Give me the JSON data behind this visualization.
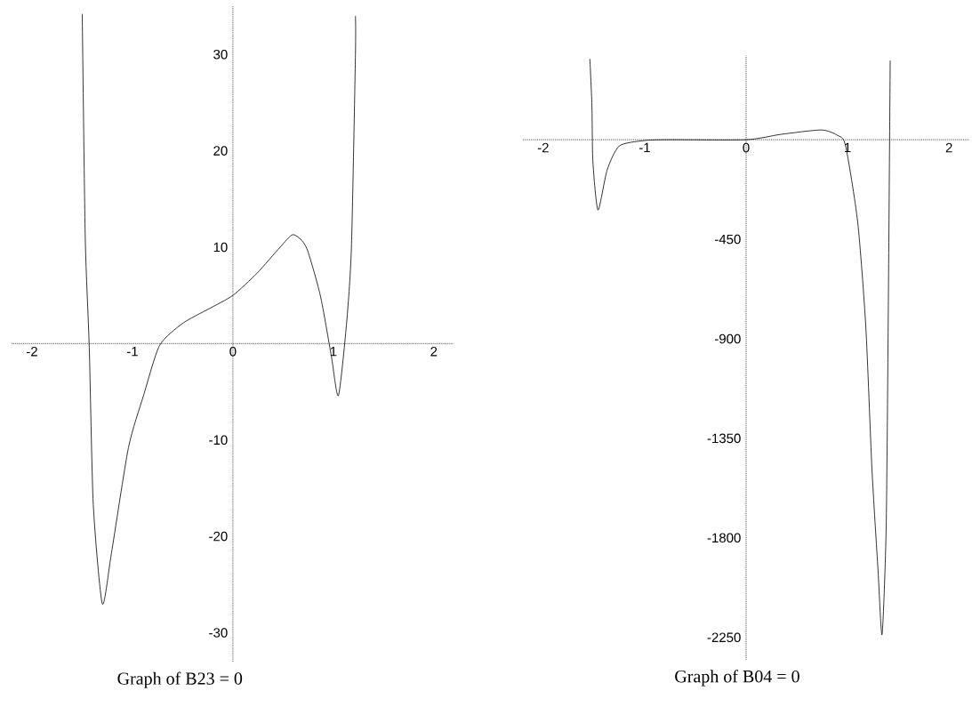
{
  "chart_data": [
    {
      "type": "line",
      "title": "Graph of  B23 = 0",
      "xlim": [
        -2.2,
        2.2
      ],
      "ylim": [
        -33,
        35
      ],
      "xticks": [
        -2,
        -1,
        0,
        1,
        2
      ],
      "yticks": [
        -30,
        -20,
        -10,
        10,
        20,
        30
      ],
      "color": "#000000",
      "x": [
        -1.5,
        -1.47,
        -1.43,
        -1.39,
        -1.3,
        -1.21,
        -1.04,
        -0.89,
        -0.73,
        -0.5,
        -0.24,
        0.0,
        0.24,
        0.47,
        0.6,
        0.73,
        0.87,
        0.98,
        1.05,
        1.13,
        1.18,
        1.22,
        1.22
      ],
      "values": [
        34.2,
        11,
        -0.4,
        -16.7,
        -27,
        -21.8,
        -10.8,
        -5.4,
        -0.2,
        2.1,
        3.6,
        5.0,
        7.3,
        10.0,
        11.3,
        10,
        5,
        -1.3,
        -5.4,
        1.9,
        10,
        30,
        34
      ]
    },
    {
      "type": "line",
      "title": "Graph of  B04 = 0",
      "xlim": [
        -2.2,
        2.2
      ],
      "ylim": [
        -2350,
        380
      ],
      "xticks": [
        -2,
        -1,
        0,
        1,
        2
      ],
      "yticks": [
        -2250,
        -1800,
        -1350,
        -900,
        -450
      ],
      "color": "#000000",
      "x": [
        -1.54,
        -1.52,
        -1.51,
        -1.46,
        -1.37,
        -1.25,
        -1.01,
        -0.77,
        0.0,
        0.34,
        0.74,
        0.9,
        0.98,
        1.1,
        1.18,
        1.24,
        1.3,
        1.34,
        1.38,
        1.4,
        1.42
      ],
      "values": [
        366,
        157,
        -100,
        -318,
        -137,
        -28,
        -4,
        0,
        0,
        24,
        44,
        20,
        -27,
        -374,
        -848,
        -1487,
        -1946,
        -2237,
        -1761,
        -848,
        358
      ]
    }
  ]
}
